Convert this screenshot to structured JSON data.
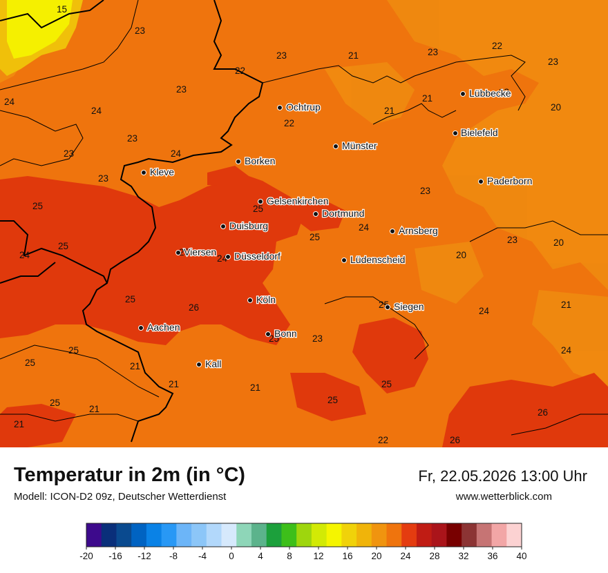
{
  "title": "Temperatur in 2m (in °C)",
  "model": "Modell: ICON-D2 09z, Deutscher Wetterdienst",
  "valid_time": "Fr, 22.05.2026 13:00 Uhr",
  "website": "www.wetterblick.com",
  "colors": {
    "t15": "#f5f000",
    "t20": "#f08a10",
    "t22": "#ef740d",
    "t24": "#e86a0c",
    "t25": "#e0390c",
    "t26": "#e03a0c",
    "border": "#000000"
  },
  "cities": [
    {
      "name": "Ochtrup"
    },
    {
      "name": "Lübbecke"
    },
    {
      "name": "Bielefeld"
    },
    {
      "name": "Münster"
    },
    {
      "name": "Borken"
    },
    {
      "name": "Kleve"
    },
    {
      "name": "Paderborn"
    },
    {
      "name": "Gelsenkirchen"
    },
    {
      "name": "Dortmund"
    },
    {
      "name": "Duisburg"
    },
    {
      "name": "Arnsberg"
    },
    {
      "name": "Viersen"
    },
    {
      "name": "Düsseldorf"
    },
    {
      "name": "Lüdenscheid"
    },
    {
      "name": "Köln"
    },
    {
      "name": "Siegen"
    },
    {
      "name": "Aachen"
    },
    {
      "name": "Bonn"
    },
    {
      "name": "Kall"
    }
  ],
  "temperature_labels": [
    "15",
    "23",
    "23",
    "21",
    "23",
    "22",
    "23",
    "22",
    "23",
    "24",
    "24",
    "21",
    "21",
    "23",
    "20",
    "22",
    "23",
    "24",
    "23",
    "23",
    "25",
    "25",
    "23",
    "25",
    "25",
    "24",
    "24",
    "24",
    "20",
    "23",
    "20",
    "25",
    "26",
    "25",
    "21",
    "25",
    "25",
    "21",
    "21",
    "23",
    "24",
    "21",
    "25",
    "21",
    "24",
    "25",
    "25",
    "26",
    "21",
    "25",
    "26",
    "22",
    "25"
  ],
  "legend": {
    "colors": [
      "#3d0a8c",
      "#0a2f7a",
      "#0a4a8f",
      "#0063c2",
      "#0a82e6",
      "#2898f5",
      "#6cb5f8",
      "#8cc6f8",
      "#b2d8fb",
      "#d6e9fc",
      "#8ed6b8",
      "#5cb38c",
      "#1ca03c",
      "#3dbf1a",
      "#9ed60d",
      "#d2ea05",
      "#f5f500",
      "#f0d20a",
      "#f0b40a",
      "#f0940f",
      "#ef740d",
      "#e43c10",
      "#c01c14",
      "#aa141a",
      "#780000",
      "#8c3434",
      "#c67474",
      "#f2a6a6",
      "#fcd2d2"
    ],
    "ticks": [
      "-20",
      "-16",
      "-12",
      "-8",
      "-4",
      "0",
      "4",
      "8",
      "12",
      "16",
      "20",
      "24",
      "28",
      "32",
      "36",
      "40"
    ]
  }
}
